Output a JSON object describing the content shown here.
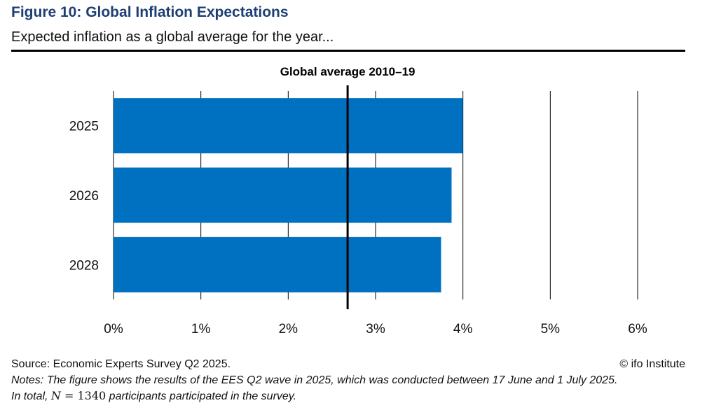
{
  "header": {
    "title": "Figure 10: Global Inflation Expectations",
    "subtitle": "Expected inflation as a global average for the year..."
  },
  "chart_data": {
    "type": "bar",
    "orientation": "horizontal",
    "categories": [
      "2025",
      "2026",
      "2028"
    ],
    "values": [
      4.0,
      3.87,
      3.75
    ],
    "value_unit": "%",
    "xlim": [
      0,
      6
    ],
    "xticks": [
      0,
      1,
      2,
      3,
      4,
      5,
      6
    ],
    "xtick_labels": [
      "0%",
      "1%",
      "2%",
      "3%",
      "4%",
      "5%",
      "6%"
    ],
    "reference_line": {
      "label": "Global average 2010–19",
      "value": 2.68
    },
    "grid": "vertical",
    "bar_color": "#0070c0",
    "title": "",
    "xlabel": "",
    "ylabel": ""
  },
  "footer": {
    "source": "Source: Economic Experts Survey Q2 2025.",
    "credit": "© ifo Institute",
    "notes_line1": "Notes: The figure shows the results of the EES Q2 wave in 2025, which was conducted between 17 June and 1 July 2025.",
    "notes_line2_prefix": "In total, ",
    "notes_variable": "N",
    "notes_equals": " = ",
    "notes_number": "1340",
    "notes_line2_suffix": " participants participated in the survey."
  },
  "colors": {
    "title": "#1f3f73",
    "bar": "#0070c0",
    "reference_line": "#000000"
  }
}
